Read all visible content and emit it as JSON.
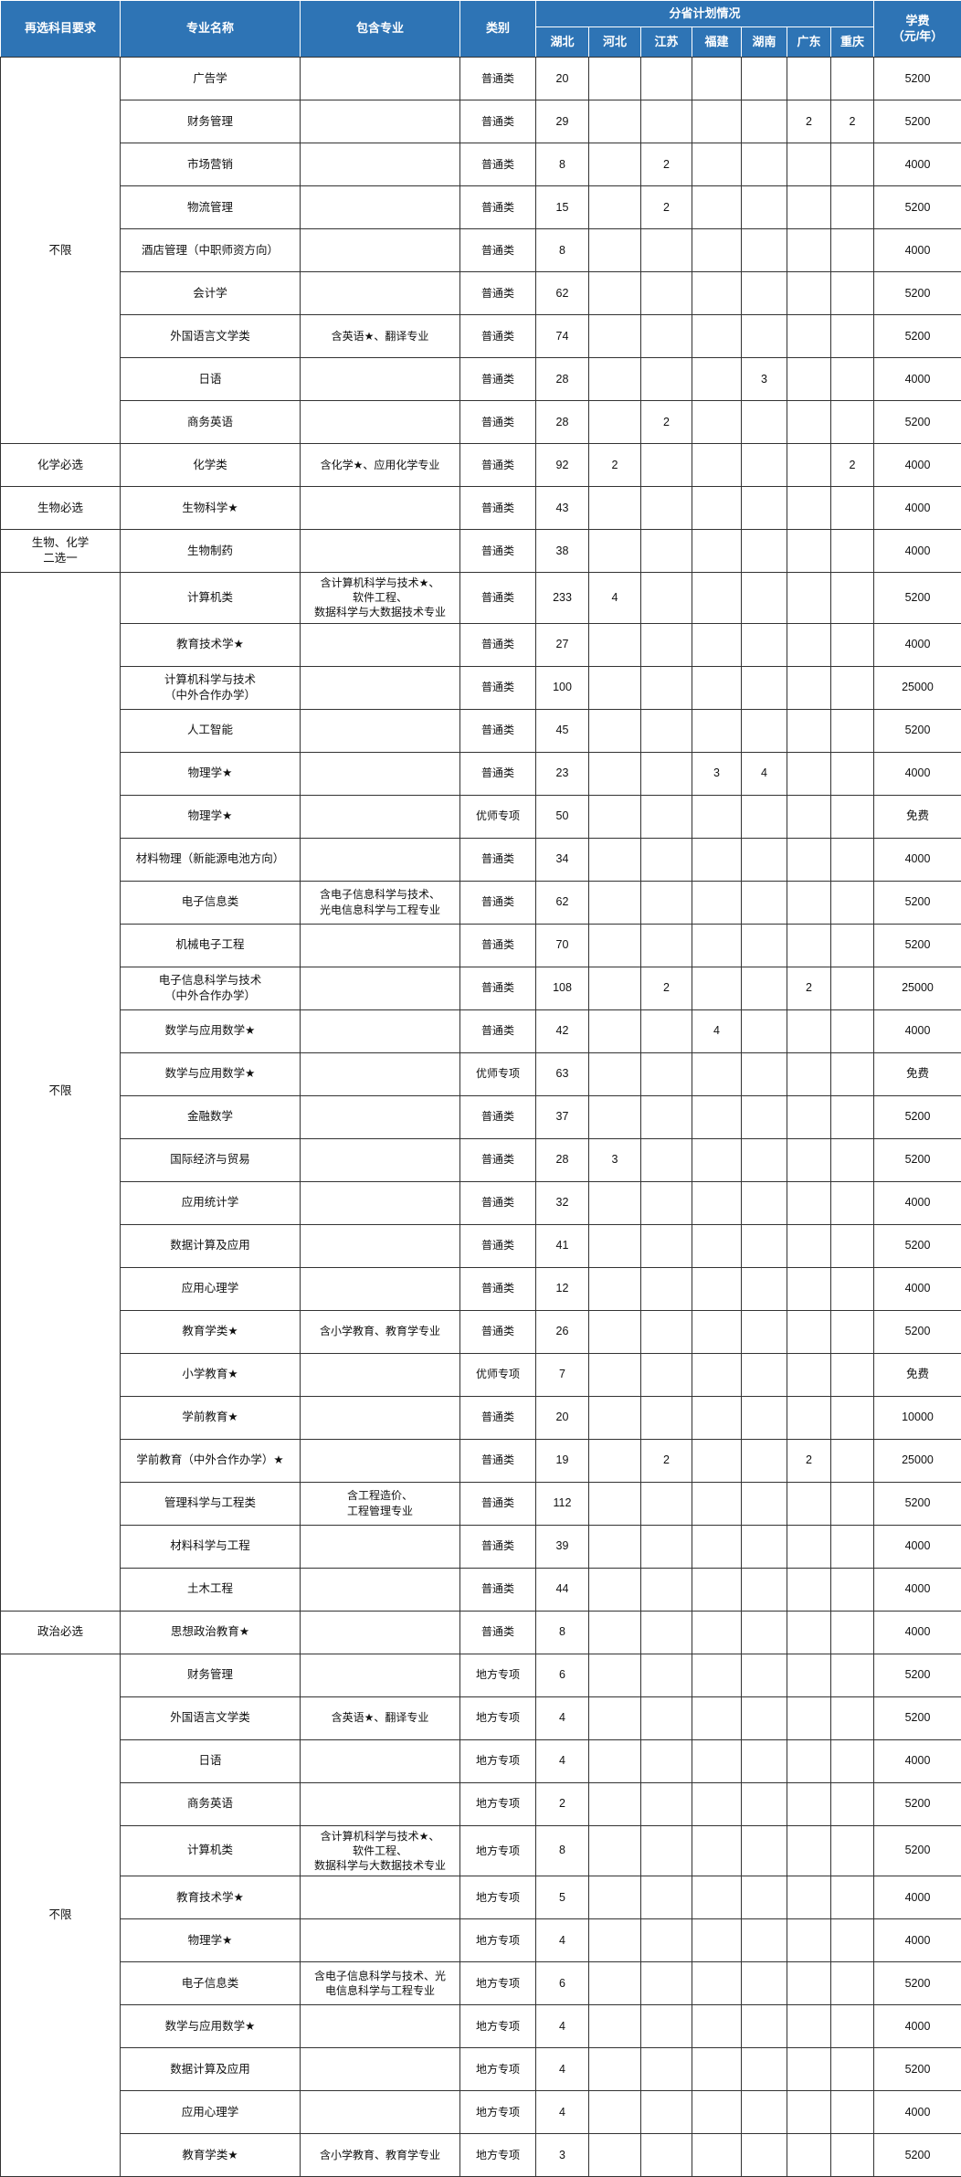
{
  "colors": {
    "header_bg": "#2E74B5",
    "header_text": "#FFFFFF",
    "body_border": "#333333",
    "body_text": "#111111"
  },
  "table": {
    "header": {
      "subject_requirement": "再选科目要求",
      "major_name": "专业名称",
      "included_majors": "包含专业",
      "category": "类别",
      "plan_group": "分省计划情况",
      "provinces": [
        "湖北",
        "河北",
        "江苏",
        "福建",
        "湖南",
        "广东",
        "重庆"
      ],
      "tuition": "学费\n（元/年）"
    },
    "groups": [
      {
        "requirement": "不限",
        "rows": [
          {
            "major": "广告学",
            "included": "",
            "category": "普通类",
            "plans": [
              "20",
              "",
              "",
              "",
              "",
              "",
              ""
            ],
            "tuition": "5200"
          },
          {
            "major": "财务管理",
            "included": "",
            "category": "普通类",
            "plans": [
              "29",
              "",
              "",
              "",
              "",
              "2",
              "2"
            ],
            "tuition": "5200"
          },
          {
            "major": "市场营销",
            "included": "",
            "category": "普通类",
            "plans": [
              "8",
              "",
              "2",
              "",
              "",
              "",
              ""
            ],
            "tuition": "4000"
          },
          {
            "major": "物流管理",
            "included": "",
            "category": "普通类",
            "plans": [
              "15",
              "",
              "2",
              "",
              "",
              "",
              ""
            ],
            "tuition": "5200"
          },
          {
            "major": "酒店管理（中职师资方向）",
            "included": "",
            "category": "普通类",
            "plans": [
              "8",
              "",
              "",
              "",
              "",
              "",
              ""
            ],
            "tuition": "4000"
          },
          {
            "major": "会计学",
            "included": "",
            "category": "普通类",
            "plans": [
              "62",
              "",
              "",
              "",
              "",
              "",
              ""
            ],
            "tuition": "5200"
          },
          {
            "major": "外国语言文学类",
            "included": "含英语★、翻译专业",
            "category": "普通类",
            "plans": [
              "74",
              "",
              "",
              "",
              "",
              "",
              ""
            ],
            "tuition": "5200"
          },
          {
            "major": "日语",
            "included": "",
            "category": "普通类",
            "plans": [
              "28",
              "",
              "",
              "",
              "3",
              "",
              ""
            ],
            "tuition": "4000"
          },
          {
            "major": "商务英语",
            "included": "",
            "category": "普通类",
            "plans": [
              "28",
              "",
              "2",
              "",
              "",
              "",
              ""
            ],
            "tuition": "5200"
          }
        ]
      },
      {
        "requirement": "化学必选",
        "rows": [
          {
            "major": "化学类",
            "included": "含化学★、应用化学专业",
            "category": "普通类",
            "plans": [
              "92",
              "2",
              "",
              "",
              "",
              "",
              "2"
            ],
            "tuition": "4000"
          }
        ]
      },
      {
        "requirement": "生物必选",
        "rows": [
          {
            "major": "生物科学★",
            "included": "",
            "category": "普通类",
            "plans": [
              "43",
              "",
              "",
              "",
              "",
              "",
              ""
            ],
            "tuition": "4000"
          }
        ]
      },
      {
        "requirement": "生物、化学\n二选一",
        "rows": [
          {
            "major": "生物制药",
            "included": "",
            "category": "普通类",
            "plans": [
              "38",
              "",
              "",
              "",
              "",
              "",
              ""
            ],
            "tuition": "4000"
          }
        ]
      },
      {
        "requirement": "不限",
        "rows": [
          {
            "major": "计算机类",
            "included": "含计算机科学与技术★、\n软件工程、\n数据科学与大数据技术专业",
            "category": "普通类",
            "plans": [
              "233",
              "4",
              "",
              "",
              "",
              "",
              ""
            ],
            "tuition": "5200"
          },
          {
            "major": "教育技术学★",
            "included": "",
            "category": "普通类",
            "plans": [
              "27",
              "",
              "",
              "",
              "",
              "",
              ""
            ],
            "tuition": "4000"
          },
          {
            "major": "计算机科学与技术\n（中外合作办学）",
            "included": "",
            "category": "普通类",
            "plans": [
              "100",
              "",
              "",
              "",
              "",
              "",
              ""
            ],
            "tuition": "25000"
          },
          {
            "major": "人工智能",
            "included": "",
            "category": "普通类",
            "plans": [
              "45",
              "",
              "",
              "",
              "",
              "",
              ""
            ],
            "tuition": "5200"
          },
          {
            "major": "物理学★",
            "included": "",
            "category": "普通类",
            "plans": [
              "23",
              "",
              "",
              "3",
              "4",
              "",
              ""
            ],
            "tuition": "4000"
          },
          {
            "major": "物理学★",
            "included": "",
            "category": "优师专项",
            "plans": [
              "50",
              "",
              "",
              "",
              "",
              "",
              ""
            ],
            "tuition": "免费"
          },
          {
            "major": "材料物理（新能源电池方向）",
            "included": "",
            "category": "普通类",
            "plans": [
              "34",
              "",
              "",
              "",
              "",
              "",
              ""
            ],
            "tuition": "4000"
          },
          {
            "major": "电子信息类",
            "included": "含电子信息科学与技术、\n光电信息科学与工程专业",
            "category": "普通类",
            "plans": [
              "62",
              "",
              "",
              "",
              "",
              "",
              ""
            ],
            "tuition": "5200"
          },
          {
            "major": "机械电子工程",
            "included": "",
            "category": "普通类",
            "plans": [
              "70",
              "",
              "",
              "",
              "",
              "",
              ""
            ],
            "tuition": "5200"
          },
          {
            "major": "电子信息科学与技术\n（中外合作办学）",
            "included": "",
            "category": "普通类",
            "plans": [
              "108",
              "",
              "2",
              "",
              "",
              "2",
              ""
            ],
            "tuition": "25000"
          },
          {
            "major": "数学与应用数学★",
            "included": "",
            "category": "普通类",
            "plans": [
              "42",
              "",
              "",
              "4",
              "",
              "",
              ""
            ],
            "tuition": "4000"
          },
          {
            "major": "数学与应用数学★",
            "included": "",
            "category": "优师专项",
            "plans": [
              "63",
              "",
              "",
              "",
              "",
              "",
              ""
            ],
            "tuition": "免费"
          },
          {
            "major": "金融数学",
            "included": "",
            "category": "普通类",
            "plans": [
              "37",
              "",
              "",
              "",
              "",
              "",
              ""
            ],
            "tuition": "5200"
          },
          {
            "major": "国际经济与贸易",
            "included": "",
            "category": "普通类",
            "plans": [
              "28",
              "3",
              "",
              "",
              "",
              "",
              ""
            ],
            "tuition": "5200"
          },
          {
            "major": "应用统计学",
            "included": "",
            "category": "普通类",
            "plans": [
              "32",
              "",
              "",
              "",
              "",
              "",
              ""
            ],
            "tuition": "4000"
          },
          {
            "major": "数据计算及应用",
            "included": "",
            "category": "普通类",
            "plans": [
              "41",
              "",
              "",
              "",
              "",
              "",
              ""
            ],
            "tuition": "5200"
          },
          {
            "major": "应用心理学",
            "included": "",
            "category": "普通类",
            "plans": [
              "12",
              "",
              "",
              "",
              "",
              "",
              ""
            ],
            "tuition": "4000"
          },
          {
            "major": "教育学类★",
            "included": "含小学教育、教育学专业",
            "category": "普通类",
            "plans": [
              "26",
              "",
              "",
              "",
              "",
              "",
              ""
            ],
            "tuition": "5200"
          },
          {
            "major": "小学教育★",
            "included": "",
            "category": "优师专项",
            "plans": [
              "7",
              "",
              "",
              "",
              "",
              "",
              ""
            ],
            "tuition": "免费"
          },
          {
            "major": "学前教育★",
            "included": "",
            "category": "普通类",
            "plans": [
              "20",
              "",
              "",
              "",
              "",
              "",
              ""
            ],
            "tuition": "10000"
          },
          {
            "major": "学前教育（中外合作办学）★",
            "included": "",
            "category": "普通类",
            "plans": [
              "19",
              "",
              "2",
              "",
              "",
              "2",
              ""
            ],
            "tuition": "25000"
          },
          {
            "major": "管理科学与工程类",
            "included": "含工程造价、\n工程管理专业",
            "category": "普通类",
            "plans": [
              "112",
              "",
              "",
              "",
              "",
              "",
              ""
            ],
            "tuition": "5200"
          },
          {
            "major": "材料科学与工程",
            "included": "",
            "category": "普通类",
            "plans": [
              "39",
              "",
              "",
              "",
              "",
              "",
              ""
            ],
            "tuition": "4000"
          },
          {
            "major": "土木工程",
            "included": "",
            "category": "普通类",
            "plans": [
              "44",
              "",
              "",
              "",
              "",
              "",
              ""
            ],
            "tuition": "4000"
          }
        ]
      },
      {
        "requirement": "政治必选",
        "rows": [
          {
            "major": "思想政治教育★",
            "included": "",
            "category": "普通类",
            "plans": [
              "8",
              "",
              "",
              "",
              "",
              "",
              ""
            ],
            "tuition": "4000"
          }
        ]
      },
      {
        "requirement": "不限",
        "rows": [
          {
            "major": "财务管理",
            "included": "",
            "category": "地方专项",
            "plans": [
              "6",
              "",
              "",
              "",
              "",
              "",
              ""
            ],
            "tuition": "5200"
          },
          {
            "major": "外国语言文学类",
            "included": "含英语★、翻译专业",
            "category": "地方专项",
            "plans": [
              "4",
              "",
              "",
              "",
              "",
              "",
              ""
            ],
            "tuition": "5200"
          },
          {
            "major": "日语",
            "included": "",
            "category": "地方专项",
            "plans": [
              "4",
              "",
              "",
              "",
              "",
              "",
              ""
            ],
            "tuition": "4000"
          },
          {
            "major": "商务英语",
            "included": "",
            "category": "地方专项",
            "plans": [
              "2",
              "",
              "",
              "",
              "",
              "",
              ""
            ],
            "tuition": "5200"
          },
          {
            "major": "计算机类",
            "included": "含计算机科学与技术★、\n软件工程、\n数据科学与大数据技术专业",
            "category": "地方专项",
            "plans": [
              "8",
              "",
              "",
              "",
              "",
              "",
              ""
            ],
            "tuition": "5200"
          },
          {
            "major": "教育技术学★",
            "included": "",
            "category": "地方专项",
            "plans": [
              "5",
              "",
              "",
              "",
              "",
              "",
              ""
            ],
            "tuition": "4000"
          },
          {
            "major": "物理学★",
            "included": "",
            "category": "地方专项",
            "plans": [
              "4",
              "",
              "",
              "",
              "",
              "",
              ""
            ],
            "tuition": "4000"
          },
          {
            "major": "电子信息类",
            "included": "含电子信息科学与技术、光\n电信息科学与工程专业",
            "category": "地方专项",
            "plans": [
              "6",
              "",
              "",
              "",
              "",
              "",
              ""
            ],
            "tuition": "5200"
          },
          {
            "major": "数学与应用数学★",
            "included": "",
            "category": "地方专项",
            "plans": [
              "4",
              "",
              "",
              "",
              "",
              "",
              ""
            ],
            "tuition": "4000"
          },
          {
            "major": "数据计算及应用",
            "included": "",
            "category": "地方专项",
            "plans": [
              "4",
              "",
              "",
              "",
              "",
              "",
              ""
            ],
            "tuition": "5200"
          },
          {
            "major": "应用心理学",
            "included": "",
            "category": "地方专项",
            "plans": [
              "4",
              "",
              "",
              "",
              "",
              "",
              ""
            ],
            "tuition": "4000"
          },
          {
            "major": "教育学类★",
            "included": "含小学教育、教育学专业",
            "category": "地方专项",
            "plans": [
              "3",
              "",
              "",
              "",
              "",
              "",
              ""
            ],
            "tuition": "5200"
          }
        ]
      }
    ]
  }
}
